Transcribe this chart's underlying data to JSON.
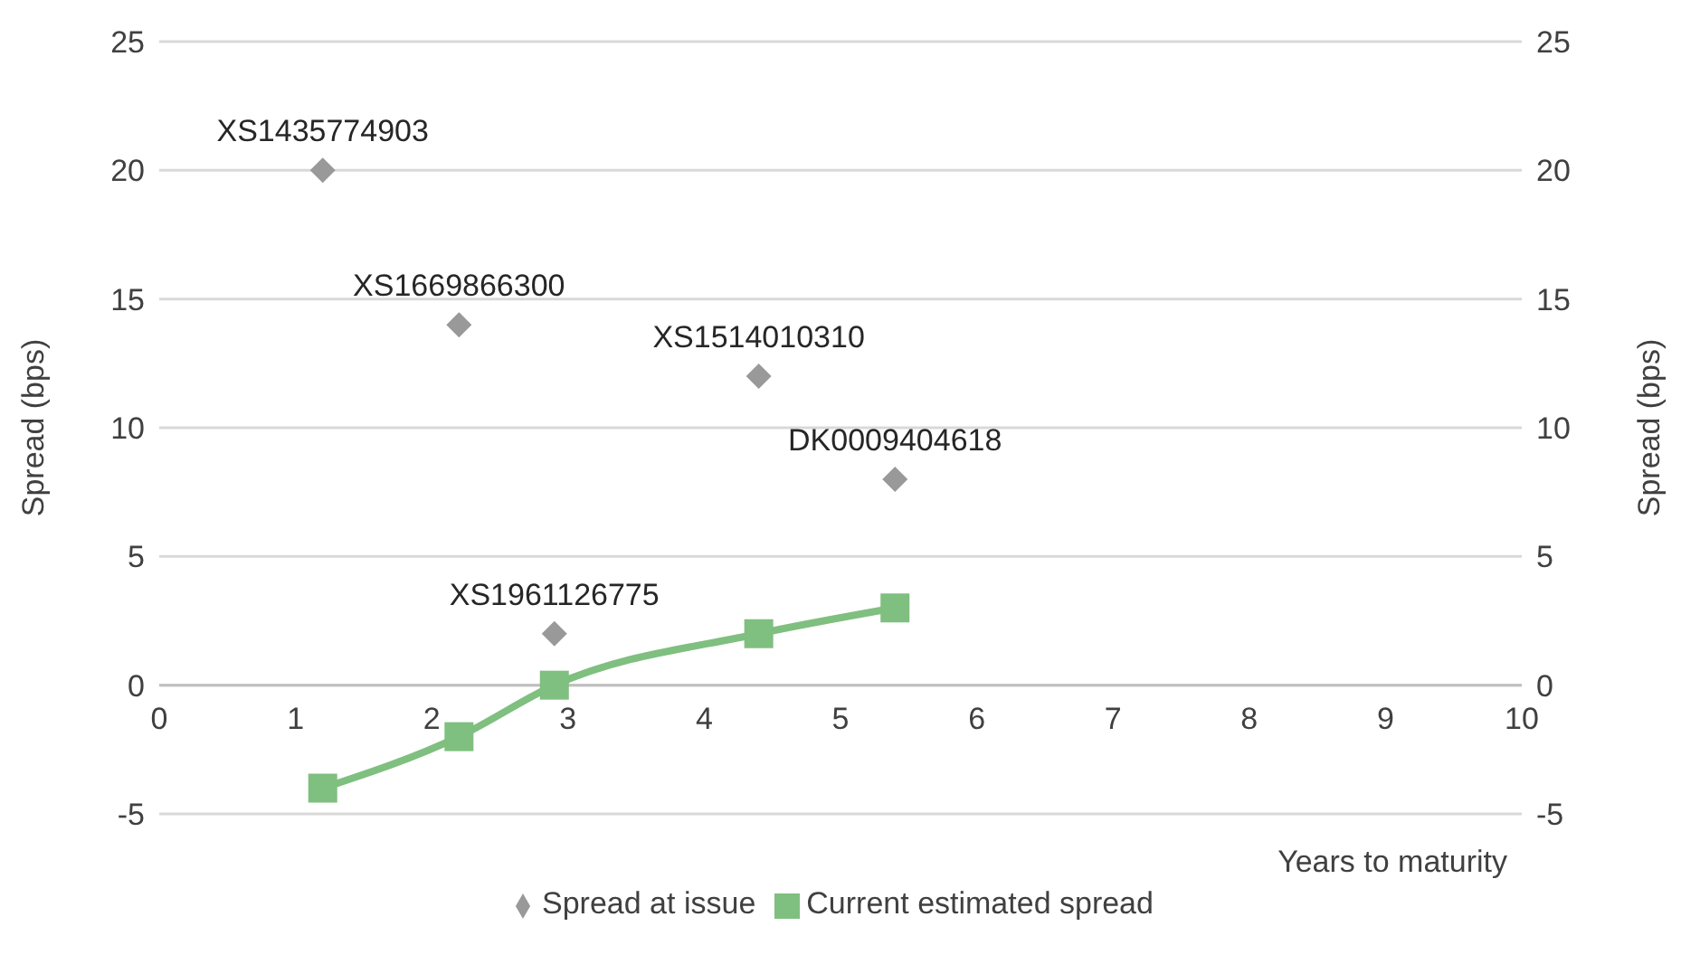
{
  "chart_data": {
    "type": "scatter",
    "xlabel": "Years to maturity",
    "ylabel": "Spread (bps)",
    "y2label": "Spread (bps)",
    "series": [
      {
        "name": "Spread at issue",
        "color": "#999999",
        "marker": "diamond",
        "x": [
          1.2,
          2.2,
          4.4,
          5.4,
          2.9
        ],
        "values": [
          20,
          14,
          12,
          8,
          2
        ]
      },
      {
        "name": "Current estimated spread",
        "type": "line",
        "color": "#7fbf7f",
        "marker": "square",
        "x": [
          1.2,
          2.2,
          2.9,
          4.4,
          5.4
        ],
        "values": [
          -4,
          -2,
          0,
          2,
          3
        ]
      }
    ],
    "annotations": [
      {
        "text": "XS1435774903",
        "x": 1.2,
        "y": 20
      },
      {
        "text": "XS1669866300",
        "x": 2.2,
        "y": 14
      },
      {
        "text": "XS1514010310",
        "x": 4.4,
        "y": 12
      },
      {
        "text": "DK0009404618",
        "x": 5.4,
        "y": 8
      },
      {
        "text": "XS1961126775",
        "x": 2.9,
        "y": 2
      }
    ],
    "xlim": [
      0,
      10
    ],
    "xticks": [
      0,
      1,
      2,
      3,
      4,
      5,
      6,
      7,
      8,
      9,
      10
    ],
    "ylim": [
      -5,
      25
    ],
    "yticks": [
      -5,
      0,
      5,
      10,
      15,
      20,
      25
    ],
    "y2lim": [
      -5,
      25
    ],
    "y2ticks": [
      -5,
      0,
      5,
      10,
      15,
      20,
      25
    ],
    "grid": "y",
    "legend": "bottom"
  }
}
